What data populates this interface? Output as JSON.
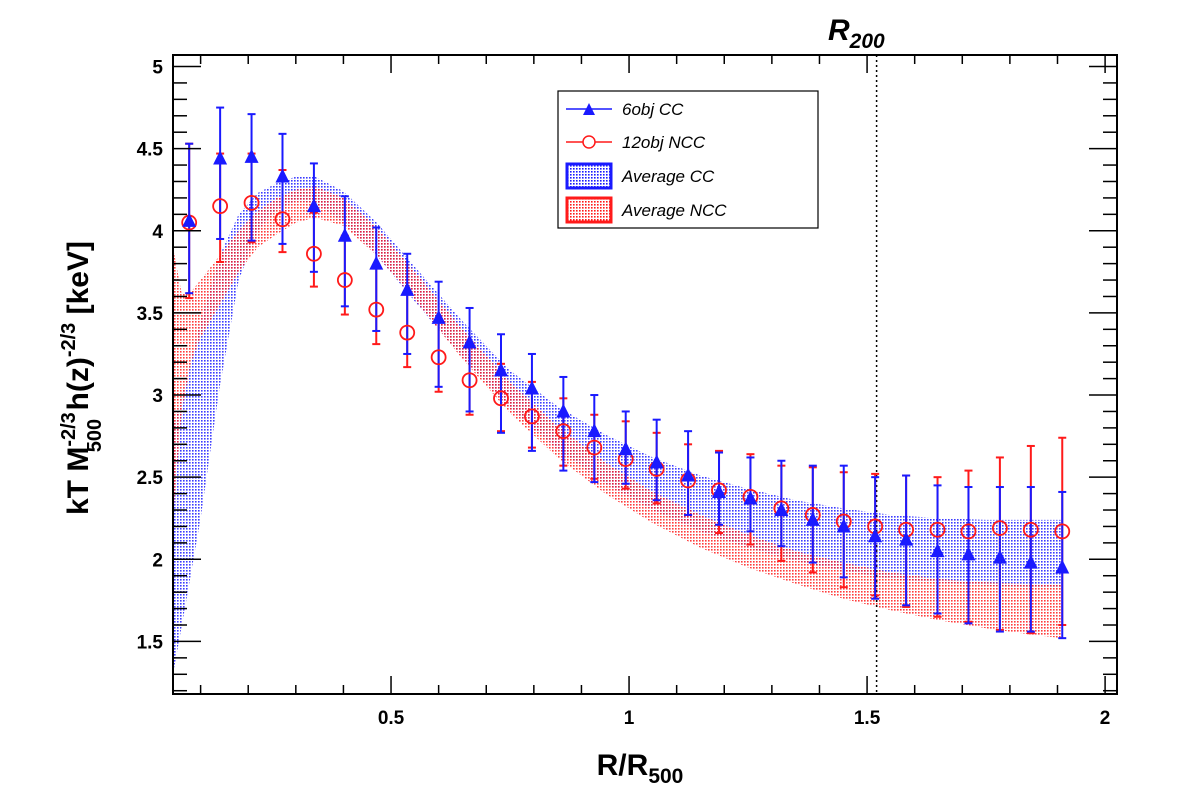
{
  "chart_data": {
    "type": "scatter",
    "title": "",
    "xlabel": "R/R_500",
    "xlabel_main": "R/R",
    "xlabel_sub": "500",
    "ylabel": "kT M_500^-2/3 h(z)^-2/3 [keV]",
    "ylabel_parts": {
      "a": "kT M",
      "a_sup": "-2/3",
      "a_sub": "500",
      "b": " h(z)",
      "b_sup": "-2/3",
      "c": " [keV]"
    },
    "xlim": [
      0.042,
      2.025
    ],
    "ylim": [
      1.18,
      5.07
    ],
    "grid": false,
    "x_ticks": [
      0.5,
      1,
      1.5,
      2
    ],
    "x_tick_labels": [
      "0.5",
      "1",
      "1.5",
      "2"
    ],
    "y_ticks": [
      1.5,
      2,
      2.5,
      3,
      3.5,
      4,
      4.5,
      5
    ],
    "y_tick_labels": [
      "1.5",
      "2",
      "2.5",
      "3",
      "3.5",
      "4",
      "4.5",
      "5"
    ],
    "legend_position": "top-center",
    "annotations": [
      {
        "text": "R",
        "sub": "200",
        "x": 1.52,
        "style": "vertical-dotted-line"
      }
    ],
    "x": [
      0.076,
      0.141,
      0.207,
      0.272,
      0.338,
      0.403,
      0.469,
      0.534,
      0.6,
      0.665,
      0.731,
      0.796,
      0.862,
      0.927,
      0.993,
      1.058,
      1.124,
      1.189,
      1.255,
      1.32,
      1.386,
      1.451,
      1.517,
      1.582,
      1.648,
      1.713,
      1.779,
      1.844,
      1.91
    ],
    "series": [
      {
        "name": "6obj CC",
        "marker": "triangle",
        "color": "#1a1aff",
        "values": [
          4.06,
          4.44,
          4.45,
          4.33,
          4.15,
          3.97,
          3.8,
          3.64,
          3.47,
          3.32,
          3.15,
          3.04,
          2.9,
          2.78,
          2.67,
          2.59,
          2.51,
          2.41,
          2.37,
          2.3,
          2.24,
          2.2,
          2.14,
          2.12,
          2.05,
          2.03,
          2.01,
          1.98,
          1.95
        ],
        "err_low": [
          0.44,
          0.49,
          0.51,
          0.41,
          0.4,
          0.43,
          0.41,
          0.39,
          0.42,
          0.42,
          0.38,
          0.38,
          0.36,
          0.31,
          0.21,
          0.23,
          0.24,
          0.2,
          0.2,
          0.22,
          0.26,
          0.31,
          0.38,
          0.4,
          0.38,
          0.42,
          0.45,
          0.42,
          0.43
        ],
        "err_high": [
          0.47,
          0.31,
          0.26,
          0.26,
          0.26,
          0.24,
          0.22,
          0.22,
          0.22,
          0.21,
          0.22,
          0.21,
          0.21,
          0.22,
          0.23,
          0.26,
          0.27,
          0.24,
          0.25,
          0.3,
          0.33,
          0.37,
          0.36,
          0.39,
          0.4,
          0.41,
          0.43,
          0.46,
          0.46
        ]
      },
      {
        "name": "12obj NCC",
        "marker": "open-circle",
        "color": "#ff1a1a",
        "values": [
          4.05,
          4.15,
          4.17,
          4.07,
          3.86,
          3.7,
          3.52,
          3.38,
          3.23,
          3.09,
          2.98,
          2.87,
          2.78,
          2.68,
          2.61,
          2.55,
          2.48,
          2.42,
          2.38,
          2.31,
          2.27,
          2.23,
          2.2,
          2.18,
          2.18,
          2.17,
          2.19,
          2.18,
          2.17
        ],
        "err_low": [
          0.46,
          0.34,
          0.24,
          0.2,
          0.2,
          0.21,
          0.21,
          0.21,
          0.21,
          0.21,
          0.2,
          0.19,
          0.21,
          0.19,
          0.18,
          0.21,
          0.21,
          0.26,
          0.29,
          0.32,
          0.35,
          0.4,
          0.42,
          0.47,
          0.53,
          0.55,
          0.62,
          0.63,
          0.57
        ],
        "err_high": [
          0.48,
          0.32,
          0.3,
          0.3,
          0.25,
          0.27,
          0.25,
          0.25,
          0.23,
          0.23,
          0.21,
          0.21,
          0.2,
          0.2,
          0.23,
          0.22,
          0.22,
          0.24,
          0.26,
          0.26,
          0.29,
          0.3,
          0.32,
          0.33,
          0.32,
          0.37,
          0.43,
          0.51,
          0.57
        ]
      }
    ],
    "bands": [
      {
        "name": "Average CC",
        "color": "#1a1aff",
        "x": [
          0.042,
          0.07,
          0.1,
          0.14,
          0.18,
          0.22,
          0.26,
          0.3,
          0.34,
          0.4,
          0.47,
          0.55,
          0.65,
          0.75,
          0.85,
          0.95,
          1.05,
          1.15,
          1.25,
          1.35,
          1.45,
          1.55,
          1.65,
          1.75,
          1.85,
          1.91
        ],
        "low": [
          1.3,
          1.75,
          2.25,
          3.05,
          3.7,
          4.0,
          4.13,
          4.18,
          4.17,
          4.05,
          3.85,
          3.57,
          3.23,
          2.92,
          2.67,
          2.46,
          2.3,
          2.17,
          2.07,
          1.99,
          1.93,
          1.88,
          1.86,
          1.84,
          1.83,
          1.83
        ],
        "high": [
          2.8,
          3.1,
          3.45,
          3.85,
          4.1,
          4.23,
          4.29,
          4.33,
          4.33,
          4.24,
          4.05,
          3.78,
          3.45,
          3.15,
          2.93,
          2.76,
          2.62,
          2.51,
          2.43,
          2.36,
          2.31,
          2.27,
          2.25,
          2.24,
          2.24,
          2.24
        ]
      },
      {
        "name": "Average NCC",
        "color": "#ff1a1a",
        "x": [
          0.042,
          0.06,
          0.08,
          0.1,
          0.14,
          0.18,
          0.22,
          0.26,
          0.3,
          0.34,
          0.4,
          0.47,
          0.55,
          0.65,
          0.75,
          0.85,
          0.95,
          1.05,
          1.15,
          1.25,
          1.35,
          1.45,
          1.55,
          1.65,
          1.75,
          1.85,
          1.91
        ],
        "low": [
          2.25,
          2.9,
          3.2,
          3.35,
          3.55,
          3.75,
          3.9,
          3.98,
          4.05,
          4.08,
          4.03,
          3.85,
          3.58,
          3.22,
          2.89,
          2.62,
          2.4,
          2.22,
          2.07,
          1.95,
          1.85,
          1.76,
          1.69,
          1.63,
          1.58,
          1.54,
          1.52
        ],
        "high": [
          3.9,
          3.62,
          3.63,
          3.7,
          3.85,
          4.0,
          4.12,
          4.2,
          4.25,
          4.27,
          4.2,
          4.02,
          3.75,
          3.4,
          3.08,
          2.81,
          2.59,
          2.41,
          2.27,
          2.15,
          2.05,
          1.98,
          1.92,
          1.88,
          1.86,
          1.85,
          1.85
        ]
      }
    ]
  },
  "legend": {
    "items": [
      {
        "label": "6obj CC",
        "kind": "triangle-line",
        "color": "#1a1aff"
      },
      {
        "label": "12obj NCC",
        "kind": "circle-line",
        "color": "#ff1a1a"
      },
      {
        "label": "Average CC",
        "kind": "band",
        "color": "#1a1aff"
      },
      {
        "label": "Average NCC",
        "kind": "band",
        "color": "#ff1a1a"
      }
    ]
  }
}
